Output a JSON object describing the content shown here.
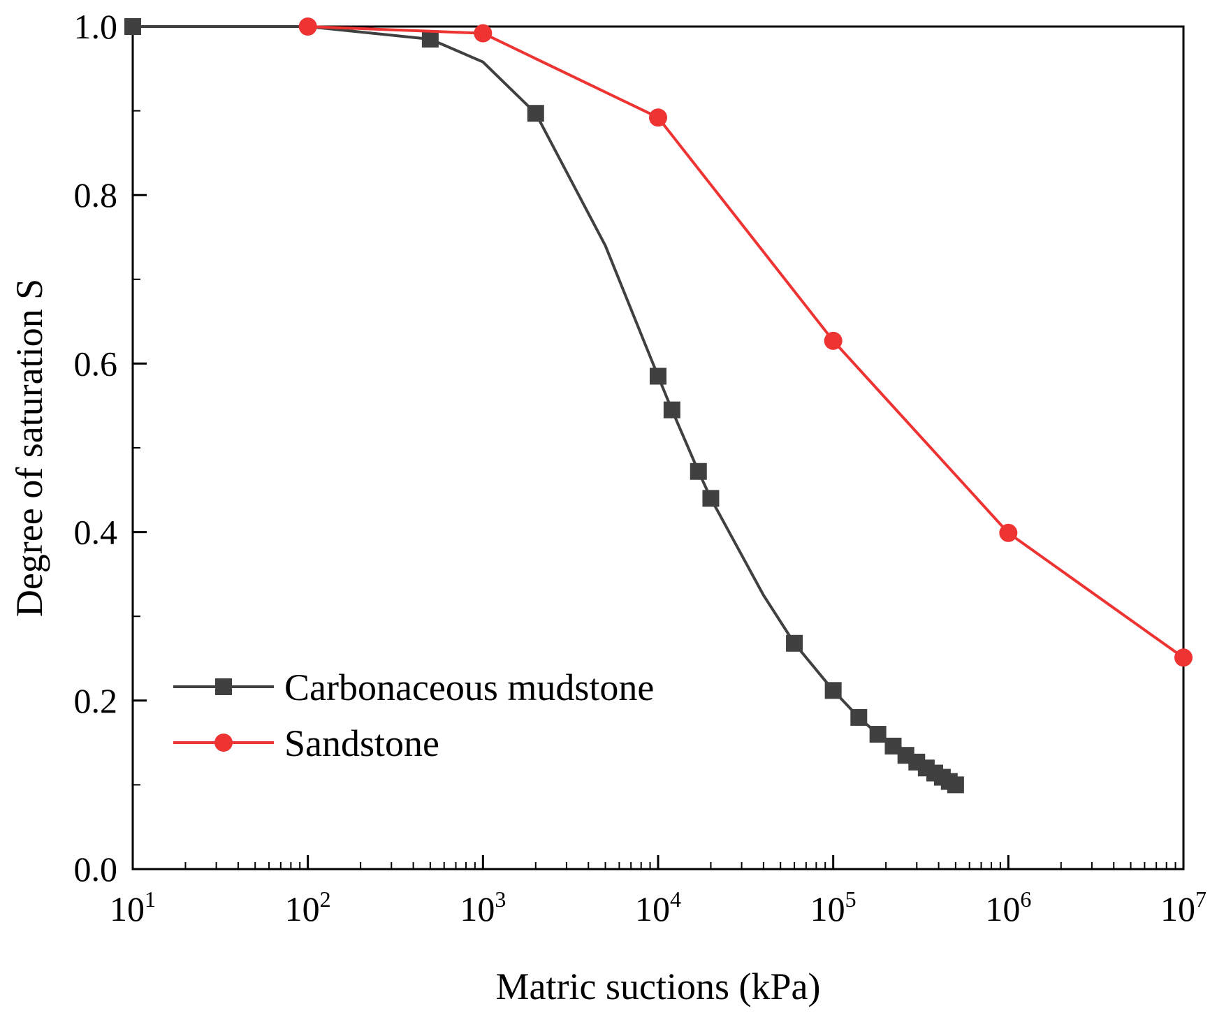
{
  "chart_data": {
    "type": "line",
    "xlabel": "Matric suctions (kPa)",
    "ylabel": "Degree of saturation S",
    "xscale": "log",
    "xlim": [
      10,
      10000000
    ],
    "ylim": [
      0.0,
      1.0
    ],
    "grid": false,
    "legend_position": "lower-left",
    "x_ticks": [
      {
        "base": "10",
        "exp": "1"
      },
      {
        "base": "10",
        "exp": "2"
      },
      {
        "base": "10",
        "exp": "3"
      },
      {
        "base": "10",
        "exp": "4"
      },
      {
        "base": "10",
        "exp": "5"
      },
      {
        "base": "10",
        "exp": "6"
      },
      {
        "base": "10",
        "exp": "7"
      }
    ],
    "y_ticks": [
      "0.0",
      "0.2",
      "0.4",
      "0.6",
      "0.8",
      "1.0"
    ],
    "series": [
      {
        "name": "Carbonaceous mudstone",
        "color": "#404040",
        "marker": "square",
        "line_x": [
          10,
          100,
          500,
          1000,
          2000,
          5000,
          10000,
          12000,
          17000,
          20000,
          40000,
          60000,
          100000,
          140000,
          180000,
          220000,
          260000,
          300000,
          340000,
          380000,
          420000,
          460000,
          500000
        ],
        "line_y": [
          1.0,
          1.0,
          0.985,
          0.958,
          0.897,
          0.74,
          0.585,
          0.545,
          0.472,
          0.44,
          0.325,
          0.268,
          0.212,
          0.18,
          0.16,
          0.146,
          0.135,
          0.127,
          0.12,
          0.114,
          0.109,
          0.104,
          0.1
        ],
        "marker_x": [
          10,
          500,
          2000,
          10000,
          12000,
          17000,
          20000,
          60000,
          100000,
          140000,
          180000,
          220000,
          260000,
          300000,
          340000,
          380000,
          420000,
          460000,
          500000
        ],
        "marker_y": [
          1.0,
          0.985,
          0.897,
          0.585,
          0.545,
          0.472,
          0.44,
          0.268,
          0.212,
          0.18,
          0.16,
          0.146,
          0.135,
          0.127,
          0.12,
          0.114,
          0.109,
          0.104,
          0.1
        ]
      },
      {
        "name": "Sandstone",
        "color": "#ee3333",
        "marker": "circle",
        "line_x": [
          100,
          1000,
          10000,
          100000,
          1000000,
          10000000
        ],
        "line_y": [
          1.0,
          0.992,
          0.892,
          0.627,
          0.399,
          0.251
        ],
        "marker_x": [
          100,
          1000,
          10000,
          100000,
          1000000,
          10000000
        ],
        "marker_y": [
          1.0,
          0.992,
          0.892,
          0.627,
          0.399,
          0.251
        ]
      }
    ]
  }
}
